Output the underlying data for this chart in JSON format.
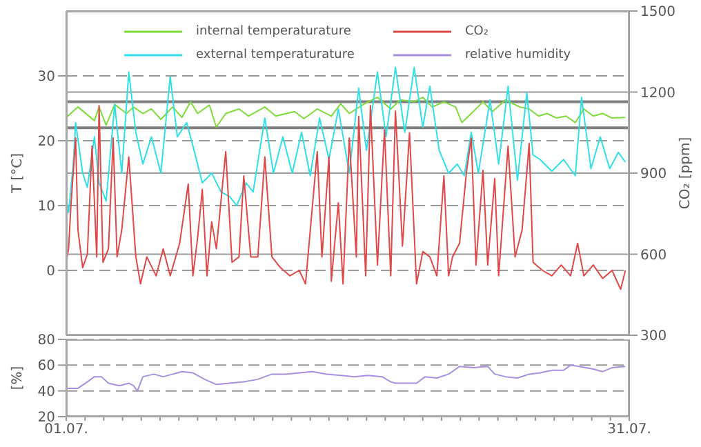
{
  "chart_data": [
    {
      "type": "line",
      "ylabel": "T [°C]",
      "y2label": "CO₂ [ppm]",
      "xlim": [
        "--07-01",
        "--07-31"
      ],
      "ylim": [
        -10,
        40
      ],
      "yticks": [
        0,
        10,
        20,
        30
      ],
      "y2lim": [
        300,
        1500
      ],
      "y2ticks": [
        300,
        600,
        900,
        1200,
        1500
      ],
      "grid": "y",
      "legend": "top",
      "tick_labels": "y",
      "ref_lines": [
        {
          "axis": "y",
          "value": 26,
          "color": "#808080"
        },
        {
          "axis": "y",
          "value": 22,
          "color": "#808080"
        }
      ],
      "series": [
        {
          "name": "internal temperaturature",
          "color": "#7ddc3a",
          "x": [
            "--07-01T00:00",
            "--07-01T15:00",
            "--07-02T12:00",
            "--07-02T18:00",
            "--07-03T03:00",
            "--07-03T14:00",
            "--07-04T05:00",
            "--07-04T14:00",
            "--07-05T02:00",
            "--07-05T13:00",
            "--07-06T01:00",
            "--07-06T16:00",
            "--07-07T04:00",
            "--07-07T15:00",
            "--07-08T00:00",
            "--07-08T15:00",
            "--07-09T00:00",
            "--07-09T12:00",
            "--07-10T05:00",
            "--07-10T17:00",
            "--07-11T14:00",
            "--07-12T04:00",
            "--07-13T04:00",
            "--07-13T16:00",
            "--07-14T09:00",
            "--07-15T03:00",
            "--07-15T15:00",
            "--07-16T02:00",
            "--07-16T20:00",
            "--07-17T14:00",
            "--07-18T07:00",
            "--07-18T19:00",
            "--07-19T13:00",
            "--07-20T00:00",
            "--07-20T12:00",
            "--07-21T03:00",
            "--07-21T18:00",
            "--07-22T02:00",
            "--07-22T14:00",
            "--07-23T05:00",
            "--07-23T17:00",
            "--07-24T10:00",
            "--07-25T04:00",
            "--07-25T16:00",
            "--07-26T04:00",
            "--07-26T15:00",
            "--07-27T03:00",
            "--07-27T15:00",
            "--07-28T03:00",
            "--07-28T14:00",
            "--07-29T02:00",
            "--07-29T14:00",
            "--07-30T02:00",
            "--07-30T19:00"
          ],
          "values": [
            23.6,
            25.2,
            23.1,
            25.2,
            22.4,
            25.6,
            24.2,
            25.2,
            24.2,
            24.9,
            23.3,
            25.2,
            23.6,
            26,
            24.2,
            25.5,
            22.1,
            24.2,
            24.9,
            23.8,
            25.2,
            23.8,
            24.5,
            23.4,
            24.9,
            23.8,
            25.7,
            24.2,
            25.6,
            26.7,
            24.9,
            26.3,
            26,
            26.7,
            25.2,
            26,
            25.2,
            22.8,
            24.2,
            26,
            24.5,
            26.3,
            25.2,
            24.9,
            23.8,
            24.2,
            23.5,
            23.8,
            22.8,
            24.9,
            23.8,
            24.2,
            23.5,
            23.6
          ]
        },
        {
          "name": "external temperaturature",
          "color": "#2fe0e8",
          "x": [
            "--07-01T00:00",
            "--07-01T03:00",
            "--07-01T09:00",
            "--07-01T12:00",
            "--07-01T21:00",
            "--07-02T03:00",
            "--07-02T12:00",
            "--07-02T18:00",
            "--07-03T03:00",
            "--07-03T14:00",
            "--07-03T23:00",
            "--07-04T08:00",
            "--07-04T17:00",
            "--07-05T02:00",
            "--07-05T13:00",
            "--07-06T01:00",
            "--07-06T13:00",
            "--07-06T22:00",
            "--07-07T10:00",
            "--07-07T18:00",
            "--07-08T06:00",
            "--07-08T18:00",
            "--07-09T06:00",
            "--07-09T17:00",
            "--07-10T02:00",
            "--07-10T14:00",
            "--07-10T23:00",
            "--07-11T14:00",
            "--07-12T01:00",
            "--07-12T13:00",
            "--07-13T01:00",
            "--07-13T13:00",
            "--07-14T00:00",
            "--07-14T12:00",
            "--07-15T00:00",
            "--07-15T12:00",
            "--07-16T02:00",
            "--07-16T14:00",
            "--07-17T00:00",
            "--07-17T14:00",
            "--07-18T01:00",
            "--07-18T13:00",
            "--07-19T01:00",
            "--07-19T13:00",
            "--07-20T00:00",
            "--07-20T09:00",
            "--07-20T21:00",
            "--07-21T09:00",
            "--07-21T20:00",
            "--07-22T05:00",
            "--07-22T14:00",
            "--07-22T23:00",
            "--07-23T14:00",
            "--07-24T01:00",
            "--07-24T13:00",
            "--07-25T01:00",
            "--07-25T13:00",
            "--07-25T21:00",
            "--07-26T06:00",
            "--07-26T21:00",
            "--07-27T12:00",
            "--07-28T03:00",
            "--07-28T11:00",
            "--07-28T23:00",
            "--07-29T11:00",
            "--07-29T23:00",
            "--07-30T10:00",
            "--07-30T19:00"
          ],
          "values": [
            11.4,
            8.9,
            16.4,
            22.8,
            15,
            12.8,
            20.6,
            13.5,
            10.7,
            25.6,
            15,
            30.6,
            21.3,
            16.4,
            20.6,
            15,
            29.9,
            20.6,
            22.8,
            19.2,
            13.5,
            15,
            12.1,
            11.4,
            10,
            13.5,
            12.1,
            23.5,
            15,
            20.6,
            15,
            21.3,
            14.6,
            23.5,
            17.1,
            24.9,
            15,
            28.1,
            18.5,
            30.6,
            20.6,
            31.3,
            21.3,
            31.3,
            22.1,
            28.4,
            18.5,
            15,
            16.4,
            14.6,
            21.3,
            15,
            26.3,
            16.4,
            28.4,
            13.9,
            27.4,
            17.8,
            17.1,
            15.3,
            17.1,
            14.6,
            26.7,
            15.7,
            20.6,
            15.7,
            18.2,
            16.7
          ]
        },
        {
          "name": "CO₂",
          "color": "#e04848",
          "axis": "y2",
          "x": [
            "--07-01T00:00",
            "--07-01T03:00",
            "--07-01T06:00",
            "--07-01T12:00",
            "--07-01T15:00",
            "--07-01T21:00",
            "--07-02T03:00",
            "--07-02T09:00",
            "--07-02T15:00",
            "--07-02T18:00",
            "--07-02T23:00",
            "--07-03T06:00",
            "--07-03T12:00",
            "--07-03T17:00",
            "--07-03T23:00",
            "--07-04T08:00",
            "--07-04T17:00",
            "--07-04T23:00",
            "--07-05T07:00",
            "--07-05T19:00",
            "--07-06T04:00",
            "--07-06T13:00",
            "--07-07T01:00",
            "--07-07T12:00",
            "--07-07T18:00",
            "--07-08T00:00",
            "--07-08T06:00",
            "--07-08T12:00",
            "--07-08T18:00",
            "--07-09T00:00",
            "--07-09T12:00",
            "--07-09T20:00",
            "--07-10T05:00",
            "--07-10T11:00",
            "--07-10T20:00",
            "--07-11T05:00",
            "--07-11T14:00",
            "--07-11T23:00",
            "--07-12T10:00",
            "--07-12T22:00",
            "--07-13T10:00",
            "--07-13T18:00",
            "--07-14T09:00",
            "--07-14T15:00",
            "--07-15T00:00",
            "--07-15T03:00",
            "--07-15T12:00",
            "--07-15T18:00",
            "--07-16T02:00",
            "--07-16T11:00",
            "--07-16T14:00",
            "--07-16T23:00",
            "--07-17T05:00",
            "--07-17T14:00",
            "--07-17T23:00",
            "--07-18T07:00",
            "--07-18T13:00",
            "--07-18T22:00",
            "--07-19T07:00",
            "--07-19T16:00",
            "--07-20T00:00",
            "--07-20T09:00",
            "--07-20T18:00",
            "--07-21T03:00",
            "--07-21T09:00",
            "--07-21T14:00",
            "--07-21T23:00",
            "--07-22T08:00",
            "--07-22T14:00",
            "--07-22T20:00",
            "--07-23T05:00",
            "--07-23T11:00",
            "--07-23T20:00",
            "--07-24T01:00",
            "--07-24T13:00",
            "--07-24T22:00",
            "--07-25T07:00",
            "--07-25T16:00",
            "--07-25T21:00",
            "--07-26T09:00",
            "--07-26T21:00",
            "--07-27T09:00",
            "--07-27T21:00",
            "--07-28T06:00",
            "--07-28T14:00",
            "--07-29T02:00",
            "--07-29T14:00",
            "--07-30T02:00",
            "--07-30T13:00",
            "--07-30T19:00"
          ],
          "values": [
            570,
            620,
            780,
            1030,
            690,
            550,
            600,
            1000,
            590,
            1150,
            570,
            620,
            1030,
            590,
            690,
            960,
            590,
            490,
            590,
            520,
            620,
            520,
            640,
            860,
            520,
            660,
            840,
            520,
            720,
            620,
            980,
            570,
            590,
            890,
            590,
            590,
            960,
            590,
            550,
            520,
            540,
            490,
            980,
            590,
            960,
            500,
            790,
            490,
            1030,
            590,
            1110,
            520,
            1150,
            560,
            1060,
            520,
            1130,
            630,
            1050,
            490,
            610,
            590,
            520,
            890,
            520,
            590,
            640,
            910,
            1030,
            560,
            910,
            560,
            880,
            520,
            1000,
            590,
            690,
            1010,
            570,
            540,
            520,
            560,
            520,
            640,
            520,
            560,
            510,
            540,
            470,
            540
          ]
        }
      ]
    },
    {
      "type": "line",
      "ylabel": "[%]",
      "xlim": [
        "--07-01",
        "--07-31"
      ],
      "xticks": [
        {
          "value": "--07-01",
          "label": "01.07."
        },
        {
          "value": "--07-02",
          "label": null
        },
        {
          "value": "--07-03",
          "label": null
        },
        {
          "value": "--07-04",
          "label": null
        },
        {
          "value": "--07-05",
          "label": null
        },
        {
          "value": "--07-06",
          "label": null
        },
        {
          "value": "--07-07",
          "label": null
        },
        {
          "value": "--07-08",
          "label": null
        },
        {
          "value": "--07-09",
          "label": null
        },
        {
          "value": "--07-10",
          "label": null
        },
        {
          "value": "--07-11",
          "label": null
        },
        {
          "value": "--07-12",
          "label": null
        },
        {
          "value": "--07-13",
          "label": null
        },
        {
          "value": "--07-14",
          "label": null
        },
        {
          "value": "--07-15",
          "label": null
        },
        {
          "value": "--07-16",
          "label": null
        },
        {
          "value": "--07-17",
          "label": null
        },
        {
          "value": "--07-18",
          "label": null
        },
        {
          "value": "--07-19",
          "label": null
        },
        {
          "value": "--07-20",
          "label": null
        },
        {
          "value": "--07-21",
          "label": null
        },
        {
          "value": "--07-22",
          "label": null
        },
        {
          "value": "--07-23",
          "label": null
        },
        {
          "value": "--07-24",
          "label": null
        },
        {
          "value": "--07-25",
          "label": null
        },
        {
          "value": "--07-26",
          "label": null
        },
        {
          "value": "--07-27",
          "label": null
        },
        {
          "value": "--07-28",
          "label": null
        },
        {
          "value": "--07-29",
          "label": null
        },
        {
          "value": "--07-30",
          "label": null
        },
        {
          "value": "--07-31",
          "label": "31.07."
        }
      ],
      "ylim": [
        20,
        80
      ],
      "yticks": [
        20,
        40,
        60,
        80
      ],
      "grid": "y",
      "series": [
        {
          "name": "relative humidity",
          "color": "#a890e0",
          "x": [
            "--07-01T00:00",
            "--07-01T15:00",
            "--07-02T03:00",
            "--07-02T12:00",
            "--07-02T21:00",
            "--07-03T06:00",
            "--07-03T20:00",
            "--07-04T08:00",
            "--07-04T14:00",
            "--07-04T19:00",
            "--07-05T02:00",
            "--07-05T16:00",
            "--07-06T04:00",
            "--07-06T16:00",
            "--07-07T04:00",
            "--07-07T18:00",
            "--07-08T09:00",
            "--07-09T00:00",
            "--07-09T17:00",
            "--07-10T11:00",
            "--07-11T05:00",
            "--07-11T23:00",
            "--07-12T16:00",
            "--07-13T10:00",
            "--07-14T03:00",
            "--07-14T21:00",
            "--07-15T15:00",
            "--07-16T08:00",
            "--07-17T02:00",
            "--07-17T20:00",
            "--07-18T07:00",
            "--07-18T13:00",
            "--07-19T01:00",
            "--07-19T16:00",
            "--07-20T03:00",
            "--07-20T18:00",
            "--07-21T09:00",
            "--07-21T23:00",
            "--07-22T17:00",
            "--07-23T11:00",
            "--07-23T20:00",
            "--07-24T10:00",
            "--07-25T01:00",
            "--07-25T16:00",
            "--07-26T06:00",
            "--07-26T21:00",
            "--07-27T12:00",
            "--07-27T21:00",
            "--07-28T08:00",
            "--07-29T02:00",
            "--07-29T14:00",
            "--07-30T02:00",
            "--07-30T19:00"
          ],
          "values": [
            42,
            42,
            47,
            51,
            51,
            46,
            44,
            46,
            44,
            40,
            51,
            53,
            51,
            53,
            55,
            54,
            49,
            45,
            46,
            47,
            49,
            53,
            53,
            54,
            55,
            53,
            52,
            51,
            52,
            51,
            47,
            46,
            46,
            46,
            51,
            50,
            53,
            59,
            58,
            59,
            53,
            51,
            50,
            53,
            54,
            56,
            56,
            60,
            59,
            57,
            55,
            58,
            59
          ]
        }
      ]
    }
  ]
}
